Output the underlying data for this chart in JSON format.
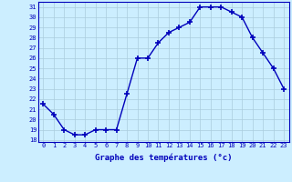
{
  "hours": [
    0,
    1,
    2,
    3,
    4,
    5,
    6,
    7,
    8,
    9,
    10,
    11,
    12,
    13,
    14,
    15,
    16,
    17,
    18,
    19,
    20,
    21,
    22,
    23
  ],
  "temperatures": [
    21.5,
    20.5,
    19.0,
    18.5,
    18.5,
    19.0,
    19.0,
    19.0,
    22.5,
    26.0,
    26.0,
    27.5,
    28.5,
    29.0,
    29.5,
    31.0,
    31.0,
    31.0,
    30.5,
    30.0,
    28.0,
    26.5,
    25.0,
    23.0
  ],
  "ylim_min": 17.8,
  "ylim_max": 31.5,
  "yticks": [
    18,
    19,
    20,
    21,
    22,
    23,
    24,
    25,
    26,
    27,
    28,
    29,
    30,
    31
  ],
  "xlabel": "Graphe des températures (°c)",
  "line_color": "#0000bb",
  "marker": "+",
  "marker_size": 4,
  "marker_lw": 1.2,
  "line_width": 1.0,
  "bg_color": "#cceeff",
  "grid_color": "#aaccdd",
  "tick_label_color": "#0000bb",
  "xlabel_color": "#0000bb",
  "tick_fontsize": 5.0,
  "xlabel_fontsize": 6.5
}
